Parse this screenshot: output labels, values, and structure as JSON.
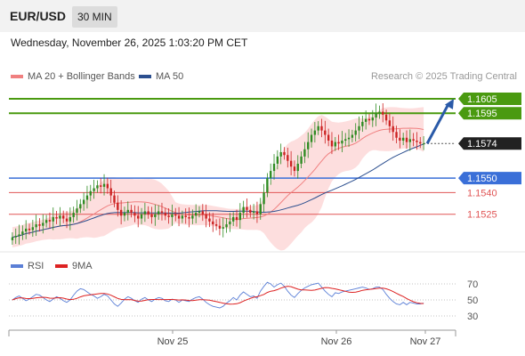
{
  "header": {
    "symbol": "EUR/USD",
    "timeframe": "30 MIN"
  },
  "datetime": "Wednesday, November 26, 2025 1:03:20 PM CET",
  "legend": {
    "ma20_label": "MA 20 + Bollinger Bands",
    "ma20_color": "#f08080",
    "ma50_label": "MA 50",
    "ma50_color": "#2c4f8f"
  },
  "copyright": "Research © 2025 Trading Central",
  "rsi_legend": {
    "rsi_label": "RSI",
    "rsi_color": "#5b7fd6",
    "ma_label": "9MA",
    "ma_color": "#dd2222"
  },
  "colors": {
    "up_candle": "#2e8b22",
    "down_candle": "#cc2222",
    "band_fill": "#fdd8d8",
    "resistance": "#4a9a10",
    "support_blue": "#3a6fd8",
    "support_red": "#e05555",
    "arrow": "#2a5aa8"
  },
  "chart_data": {
    "type": "candlestick",
    "price_range": [
      1.1502,
      1.1613
    ],
    "x_ticks": [
      "Nov 25",
      "Nov 26",
      "Nov 27"
    ],
    "levels": [
      {
        "value": 1.1605,
        "label": "1.1605",
        "kind": "resistance"
      },
      {
        "value": 1.1595,
        "label": "1.1595",
        "kind": "resistance"
      },
      {
        "value": 1.1574,
        "label": "1.1574",
        "kind": "current"
      },
      {
        "value": 1.155,
        "label": "1.1550",
        "kind": "pivot"
      },
      {
        "value": 1.154,
        "label": "1.1540",
        "kind": "support"
      },
      {
        "value": 1.1525,
        "label": "1.1525",
        "kind": "support"
      }
    ],
    "arrow": {
      "from": 1.1574,
      "to": 1.1605
    },
    "closes": [
      1.1509,
      1.151,
      1.1511,
      1.1513,
      1.1515,
      1.1514,
      1.1516,
      1.1518,
      1.1517,
      1.1519,
      1.1521,
      1.152,
      1.1523,
      1.1522,
      1.1524,
      1.1522,
      1.152,
      1.1523,
      1.1526,
      1.1529,
      1.1532,
      1.1535,
      1.1538,
      1.1541,
      1.1543,
      1.1545,
      1.1544,
      1.1546,
      1.1543,
      1.1538,
      1.1533,
      1.1528,
      1.1524,
      1.1526,
      1.1528,
      1.1526,
      1.1524,
      1.1522,
      1.1525,
      1.1527,
      1.1525,
      1.1523,
      1.1525,
      1.1527,
      1.1526,
      1.1524,
      1.1523,
      1.1525,
      1.1524,
      1.1522,
      1.1524,
      1.1523,
      1.1522,
      1.1524,
      1.1526,
      1.1527,
      1.1525,
      1.1522,
      1.152,
      1.1518,
      1.1517,
      1.1515,
      1.1516,
      1.1518,
      1.152,
      1.1523,
      1.1521,
      1.1526,
      1.153,
      1.1528,
      1.1526,
      1.1527,
      1.1525,
      1.1532,
      1.154,
      1.155,
      1.1555,
      1.156,
      1.1565,
      1.1568,
      1.1566,
      1.1562,
      1.1558,
      1.1555,
      1.156,
      1.1565,
      1.157,
      1.1575,
      1.158,
      1.1583,
      1.1586,
      1.1583,
      1.158,
      1.1576,
      1.1572,
      1.1575,
      1.1574,
      1.1576,
      1.1577,
      1.1578,
      1.158,
      1.1583,
      1.1586,
      1.1589,
      1.1591,
      1.159,
      1.1592,
      1.1595,
      1.1596,
      1.1594,
      1.159,
      1.1586,
      1.1582,
      1.1578,
      1.1576,
      1.1578,
      1.1575,
      1.1577,
      1.1576,
      1.1575,
      1.1574,
      1.1574
    ],
    "rsi": {
      "ylim": [
        20,
        80
      ],
      "levels": [
        70,
        50,
        30
      ],
      "values": [
        50,
        53,
        55,
        52,
        49,
        51,
        54,
        57,
        56,
        53,
        50,
        48,
        51,
        54,
        52,
        49,
        47,
        50,
        56,
        61,
        64,
        63,
        60,
        57,
        55,
        52,
        54,
        57,
        55,
        50,
        45,
        42,
        46,
        51,
        54,
        52,
        49,
        47,
        51,
        53,
        50,
        48,
        51,
        53,
        52,
        49,
        48,
        51,
        50,
        47,
        50,
        49,
        48,
        51,
        53,
        54,
        51,
        47,
        44,
        42,
        41,
        40,
        42,
        46,
        49,
        53,
        50,
        56,
        60,
        57,
        54,
        55,
        52,
        61,
        67,
        72,
        70,
        66,
        69,
        71,
        67,
        61,
        56,
        53,
        58,
        62,
        65,
        67,
        69,
        70,
        71,
        66,
        61,
        57,
        54,
        59,
        58,
        60,
        61,
        62,
        63,
        64,
        65,
        66,
        65,
        63,
        64,
        66,
        66,
        63,
        57,
        52,
        48,
        45,
        44,
        47,
        44,
        47,
        46,
        45,
        45,
        46
      ]
    }
  }
}
